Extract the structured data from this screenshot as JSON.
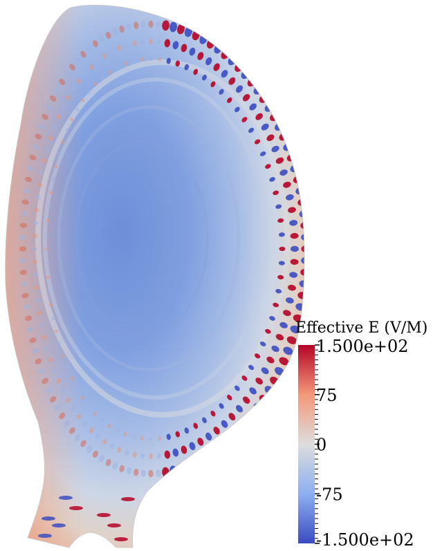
{
  "colorbar": {
    "title": "Effective E (V/M)",
    "range": [
      -150,
      150
    ],
    "ticks": [
      {
        "value": 150,
        "label": "1.500e+02"
      },
      {
        "value": 75,
        "label": "75"
      },
      {
        "value": 0,
        "label": "0"
      },
      {
        "value": -75,
        "label": "-75"
      },
      {
        "value": -150,
        "label": "-1.500e+02"
      }
    ],
    "colormap": [
      "#3b4cc0",
      "#8caff0",
      "#dddddd",
      "#f4987a",
      "#b40426"
    ]
  },
  "colors": {
    "negative": "#3b4cc0",
    "neutral": "#dddddd",
    "positive": "#b40426",
    "background": "#ffffff"
  }
}
